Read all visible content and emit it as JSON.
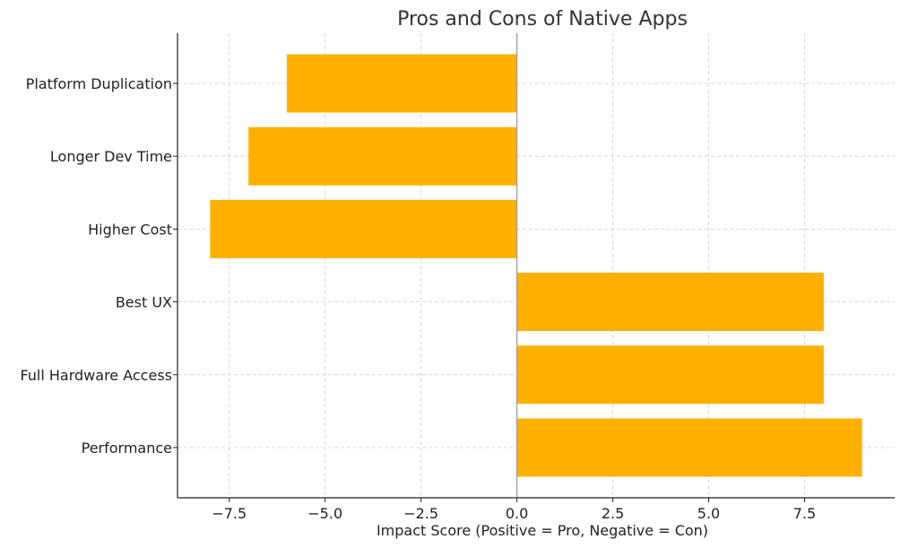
{
  "chart_data": {
    "type": "bar",
    "orientation": "horizontal",
    "title": "Pros and Cons of Native Apps",
    "xlabel": "Impact Score (Positive = Pro, Negative = Con)",
    "ylabel": "",
    "categories": [
      "Performance",
      "Full Hardware Access",
      "Best UX",
      "Higher Cost",
      "Longer Dev Time",
      "Platform Duplication"
    ],
    "values": [
      9,
      8,
      8,
      -8,
      -7,
      -6
    ],
    "xlim": [
      -8.85,
      9.85
    ],
    "xticks": [
      -7.5,
      -5.0,
      -2.5,
      0.0,
      2.5,
      5.0,
      7.5
    ],
    "xtick_labels": [
      "−7.5",
      "−5.0",
      "−2.5",
      "0.0",
      "2.5",
      "5.0",
      "7.5"
    ],
    "grid": true,
    "colors": {
      "bar": "#FFB000"
    }
  }
}
